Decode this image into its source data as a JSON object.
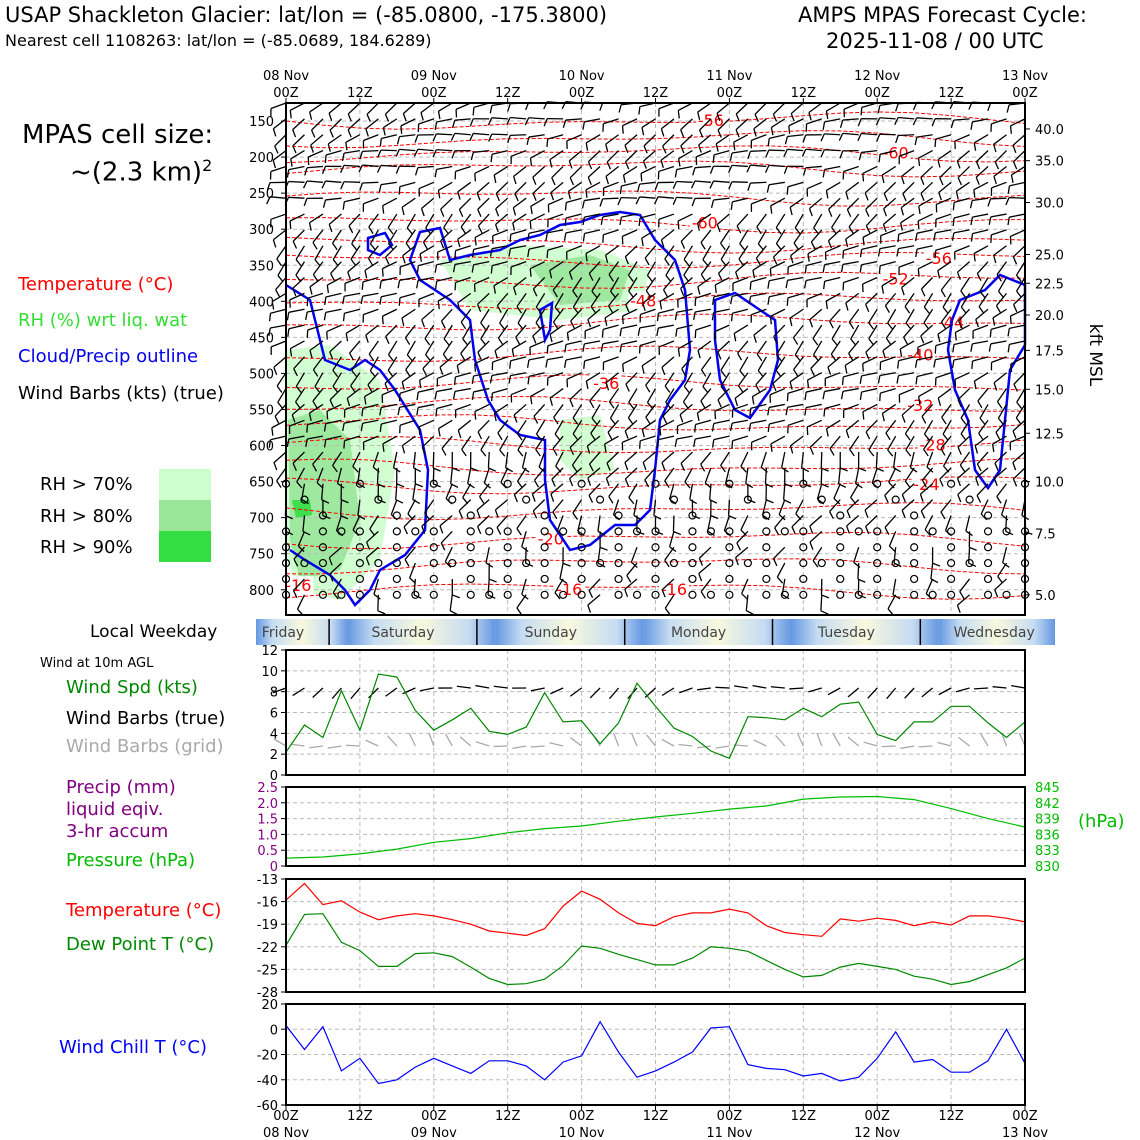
{
  "header": {
    "title_left": "USAP Shackleton Glacier: lat/lon = (-85.0800, -175.3800)",
    "subtitle_left": "Nearest cell 1108263: lat/lon = (-85.0689, 184.6289)",
    "title_right_1": "AMPS MPAS Forecast Cycle:",
    "title_right_2": "2025-11-08 / 00 UTC"
  },
  "sidebar": {
    "cell_size_title": "MPAS cell size:",
    "cell_size_value": "~(2.3 km)",
    "cell_size_exp": "2",
    "legend_temperature": "Temperature (°C)",
    "legend_rh": "RH (%) wrt liq. wat",
    "legend_cloud": "Cloud/Precip outline",
    "legend_barbs": "Wind Barbs (kts) (true)",
    "rh_70": "RH > 70%",
    "rh_80": "RH > 80%",
    "rh_90": "RH > 90%",
    "local_weekday": "Local Weekday",
    "wind_10m": "Wind at 10m AGL",
    "wind_spd": "Wind Spd (kts)",
    "wind_barbs_true": "Wind Barbs (true)",
    "wind_barbs_grid": "Wind Barbs (grid)",
    "precip_1": "Precip (mm)",
    "precip_2": "liquid eqiv.",
    "precip_3": "3-hr accum",
    "pressure": "Pressure (hPa)",
    "temperature": "Temperature (°C)",
    "dewpoint": "Dew Point T (°C)",
    "windchill": "Wind Chill T (°C)"
  },
  "colors": {
    "temperature": "#ff0000",
    "rh_legend": "#33dd33",
    "cloud": "#0000ee",
    "wind_spd": "#008800",
    "grid_barbs": "#aaaaaa",
    "precip": "#800080",
    "pressure": "#00bb00",
    "dewpoint": "#008800",
    "windchill": "#0000ff",
    "rh70": "#ccffcc",
    "rh80": "#99e699",
    "rh90": "#33dd44"
  },
  "time_axis": {
    "top_date_labels": [
      "08 Nov",
      "09 Nov",
      "10 Nov",
      "11 Nov",
      "12 Nov",
      "13 Nov"
    ],
    "tick_labels": [
      "00Z",
      "12Z",
      "00Z",
      "12Z",
      "00Z",
      "12Z",
      "00Z",
      "12Z",
      "00Z",
      "12Z",
      "00Z"
    ],
    "weekdays": [
      "Friday",
      "Saturday",
      "Sunday",
      "Monday",
      "Tuesday",
      "Wednesday"
    ]
  },
  "chart_data": [
    {
      "id": "cross_section",
      "type": "contour",
      "title": "",
      "ylabel_right": "kft MSL",
      "y_left_pressure_hPa": [
        150,
        200,
        250,
        300,
        350,
        400,
        450,
        500,
        550,
        600,
        650,
        700,
        750,
        800
      ],
      "y_right_kft_labels": [
        "40.0",
        "35.0",
        "30.0",
        "25.0",
        "22.5",
        "20.0",
        "17.5",
        "15.0",
        "12.5",
        "10.0",
        "7.5",
        "5.0"
      ],
      "y_right_kft_at_hPa": [
        161,
        205,
        263,
        335,
        375,
        419,
        468,
        522,
        583,
        650,
        722,
        807
      ],
      "temperature_contour_labels": [
        {
          "value": "-56",
          "hour": 69,
          "p": 150
        },
        {
          "value": "-60",
          "hour": 99,
          "p": 195
        },
        {
          "value": "-60",
          "hour": 68,
          "p": 292
        },
        {
          "value": "-56",
          "hour": 106,
          "p": 341
        },
        {
          "value": "-52",
          "hour": 99,
          "p": 370
        },
        {
          "value": "-48",
          "hour": 58,
          "p": 400
        },
        {
          "value": "-44",
          "hour": 108,
          "p": 430
        },
        {
          "value": "-40",
          "hour": 103,
          "p": 475
        },
        {
          "value": "-36",
          "hour": 52,
          "p": 515
        },
        {
          "value": "-32",
          "hour": 103,
          "p": 545
        },
        {
          "value": "-28",
          "hour": 105,
          "p": 600
        },
        {
          "value": "-24",
          "hour": 104,
          "p": 655
        },
        {
          "value": "-20",
          "hour": 43,
          "p": 730
        },
        {
          "value": "-16",
          "hour": 2,
          "p": 795
        },
        {
          "value": "-16",
          "hour": 46,
          "p": 800
        },
        {
          "value": "-16",
          "hour": 63,
          "p": 800
        }
      ]
    },
    {
      "id": "wind_speed",
      "type": "line",
      "ylim": [
        0,
        12
      ],
      "yticks": [
        0,
        2,
        4,
        6,
        8,
        10,
        12
      ],
      "x_hours": [
        0,
        3,
        6,
        9,
        12,
        15,
        18,
        21,
        24,
        27,
        30,
        33,
        36,
        39,
        42,
        45,
        48,
        51,
        54,
        57,
        60,
        63,
        66,
        69,
        72,
        75,
        78,
        81,
        84,
        87,
        90,
        93,
        96,
        99,
        102,
        105,
        108,
        111,
        114,
        117,
        120
      ],
      "values": [
        2.2,
        4.8,
        3.6,
        8.1,
        4.3,
        9.7,
        9.4,
        6.2,
        4.3,
        5.3,
        6.4,
        4.2,
        3.9,
        4.6,
        7.9,
        5.1,
        5.2,
        3.0,
        5.0,
        8.8,
        6.6,
        4.5,
        3.7,
        2.3,
        1.6,
        5.6,
        5.5,
        5.3,
        6.4,
        5.6,
        6.8,
        7.0,
        3.9,
        3.3,
        5.1,
        5.1,
        6.6,
        6.6,
        5.0,
        3.6,
        5.1
      ]
    },
    {
      "id": "precip_pressure",
      "type": "line",
      "precip_ylim": [
        0,
        2.5
      ],
      "precip_ticks": [
        "0",
        "0.5",
        "1.0",
        "1.5",
        "2.0",
        "2.5"
      ],
      "pressure_ylim": [
        830,
        845
      ],
      "pressure_ticks": [
        "830",
        "833",
        "836",
        "839",
        "842",
        "845"
      ],
      "pressure_unit": "(hPa)",
      "x_hours": [
        0,
        6,
        12,
        18,
        24,
        30,
        36,
        42,
        48,
        54,
        60,
        66,
        72,
        78,
        84,
        90,
        96,
        102,
        108,
        114,
        120
      ],
      "pressure_values": [
        831.5,
        831.7,
        832.3,
        833.2,
        834.5,
        835.2,
        836.3,
        837.1,
        837.6,
        838.5,
        839.3,
        840.0,
        840.8,
        841.4,
        842.7,
        843.1,
        843.2,
        842.6,
        840.9,
        839.0,
        837.4
      ]
    },
    {
      "id": "temp_dewpoint",
      "type": "line",
      "ylim": [
        -28,
        -13
      ],
      "yticks": [
        -28,
        -25,
        -22,
        -19,
        -16,
        -13
      ],
      "x_hours": [
        0,
        3,
        6,
        9,
        12,
        15,
        18,
        21,
        24,
        27,
        30,
        33,
        36,
        39,
        42,
        45,
        48,
        51,
        54,
        57,
        60,
        63,
        66,
        69,
        72,
        75,
        78,
        81,
        84,
        87,
        90,
        93,
        96,
        99,
        102,
        105,
        108,
        111,
        114,
        117,
        120
      ],
      "temperature": [
        -15.8,
        -13.6,
        -16.4,
        -15.9,
        -17.4,
        -18.4,
        -17.9,
        -17.6,
        -17.9,
        -18.4,
        -19.0,
        -19.9,
        -20.2,
        -20.5,
        -19.6,
        -16.6,
        -14.6,
        -15.7,
        -17.5,
        -18.9,
        -19.2,
        -18.0,
        -17.5,
        -17.5,
        -17.0,
        -17.5,
        -19.2,
        -20.1,
        -20.4,
        -20.6,
        -18.3,
        -18.6,
        -18.2,
        -18.5,
        -19.2,
        -18.7,
        -19.1,
        -17.9,
        -17.9,
        -18.2,
        -18.7
      ],
      "dewpoint": [
        -21.8,
        -17.7,
        -17.6,
        -21.4,
        -22.5,
        -24.6,
        -24.6,
        -22.9,
        -22.8,
        -23.3,
        -24.7,
        -26.2,
        -27.0,
        -26.9,
        -26.3,
        -24.5,
        -21.9,
        -22.2,
        -23.0,
        -23.7,
        -24.4,
        -24.4,
        -23.5,
        -22.0,
        -22.2,
        -22.6,
        -23.8,
        -25.0,
        -26.0,
        -25.8,
        -24.7,
        -24.2,
        -24.6,
        -25.0,
        -25.9,
        -26.3,
        -27.0,
        -26.6,
        -25.7,
        -24.8,
        -23.5
      ]
    },
    {
      "id": "wind_chill",
      "type": "line",
      "ylim": [
        -60,
        20
      ],
      "yticks": [
        -60,
        -40,
        -20,
        0,
        20
      ],
      "x_hours": [
        0,
        3,
        6,
        9,
        12,
        15,
        18,
        21,
        24,
        27,
        30,
        33,
        36,
        39,
        42,
        45,
        48,
        51,
        54,
        57,
        60,
        63,
        66,
        69,
        72,
        75,
        78,
        81,
        84,
        87,
        90,
        93,
        96,
        99,
        102,
        105,
        108,
        111,
        114,
        117,
        120
      ],
      "values": [
        3,
        -16,
        2,
        -33,
        -23,
        -43,
        -40,
        -30,
        -23,
        -29,
        -35,
        -25,
        -25,
        -29,
        -40,
        -26,
        -21,
        6,
        -18,
        -38,
        -33,
        -26,
        -18,
        1,
        2,
        -28,
        -31,
        -32,
        -37,
        -35,
        -41,
        -38,
        -23,
        -2,
        -26,
        -24,
        -34,
        -34,
        -25,
        0,
        -27
      ]
    }
  ]
}
